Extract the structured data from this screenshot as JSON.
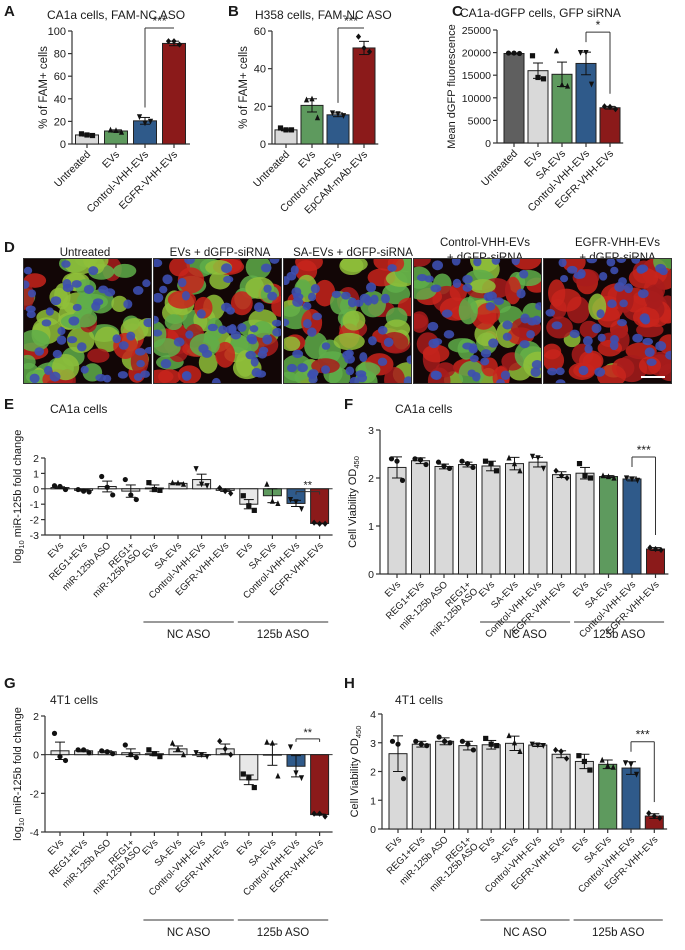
{
  "figure_labels": {
    "A": "A",
    "B": "B",
    "C": "C",
    "D": "D",
    "E": "E",
    "F": "F",
    "G": "G",
    "H": "H"
  },
  "colors": {
    "untreated_gray": "#d9d9d9",
    "dark_gray": "#5f5f5f",
    "green": "#5e9a5e",
    "blue": "#2f5a8a",
    "red": "#8b1a1a",
    "axis": "#333333"
  },
  "microscopy": {
    "panels": [
      {
        "title_line1": "Untreated",
        "title_line2": ""
      },
      {
        "title_line1": "EVs + dGFP-siRNA",
        "title_line2": ""
      },
      {
        "title_line1": "SA-EVs + dGFP-siRNA",
        "title_line2": ""
      },
      {
        "title_line1": "Control-VHH-EVs",
        "title_line2": "+ dGFP-siRNA"
      },
      {
        "title_line1": "EGFR-VHH-EVs",
        "title_line2": "+ dGFP-siRNA"
      }
    ]
  },
  "chart_data": [
    {
      "id": "A",
      "type": "bar",
      "title": "CA1a cells, FAM-NC ASO",
      "xlabel": "",
      "ylabel": "% of FAM+ cells",
      "ylim": [
        0,
        100
      ],
      "yticks": [
        0,
        20,
        40,
        60,
        80,
        100
      ],
      "categories": [
        "Untreated",
        "EVs",
        "Control-VHH-EVs",
        "EGFR-VHH-EVs"
      ],
      "values": [
        8,
        11.5,
        20.5,
        89
      ],
      "errors": [
        1,
        1,
        3,
        2
      ],
      "points": [
        [
          9,
          8,
          7.5
        ],
        [
          12.5,
          12,
          10.5
        ],
        [
          24,
          18.5,
          20
        ],
        [
          91,
          91,
          88
        ]
      ],
      "markers": [
        "square",
        "triangle",
        "triangle-down",
        "diamond"
      ],
      "bar_colors": [
        "#d9d9d9",
        "#5e9a5e",
        "#2f5a8a",
        "#8b1a1a"
      ],
      "significance": [
        {
          "from": 2,
          "to": 3,
          "label": "***"
        }
      ],
      "grid": false
    },
    {
      "id": "B",
      "type": "bar",
      "title": "H358 cells, FAM-NC ASO",
      "xlabel": "",
      "ylabel": "% of FAM+ cells",
      "ylim": [
        0,
        60
      ],
      "yticks": [
        0,
        20,
        40,
        60
      ],
      "categories": [
        "Untreated",
        "EVs",
        "Control-mAb-EVs",
        "EpCAM-mAb-EVs"
      ],
      "values": [
        7.5,
        20.5,
        15.5,
        51
      ],
      "errors": [
        0.5,
        3.5,
        1,
        3.5
      ],
      "points": [
        [
          8.5,
          7.5,
          7.5
        ],
        [
          23.5,
          24,
          14
        ],
        [
          16.5,
          16,
          15
        ],
        [
          57,
          51,
          49
        ]
      ],
      "markers": [
        "square",
        "triangle",
        "triangle-down",
        "diamond"
      ],
      "bar_colors": [
        "#d9d9d9",
        "#5e9a5e",
        "#2f5a8a",
        "#8b1a1a"
      ],
      "significance": [
        {
          "from": 2,
          "to": 3,
          "label": "***"
        }
      ],
      "grid": false
    },
    {
      "id": "C",
      "type": "bar",
      "title": "CA1a-dGFP cells, GFP siRNA",
      "xlabel": "",
      "ylabel": "Mean dGFP fluorescence",
      "ylim": [
        0,
        25000
      ],
      "yticks": [
        0,
        5000,
        10000,
        15000,
        20000,
        25000
      ],
      "categories": [
        "Untreated",
        "EVs",
        "SA-EVs",
        "Control-VHH-EVs",
        "EGFR-VHH-EVs"
      ],
      "values": [
        19800,
        16000,
        15200,
        17600,
        7800
      ],
      "errors": [
        100,
        1700,
        2700,
        2500,
        300
      ],
      "points": [
        [
          19900,
          19900,
          19800
        ],
        [
          19300,
          14500,
          14200
        ],
        [
          20400,
          12900,
          12600
        ],
        [
          20000,
          20000,
          13000
        ],
        [
          8100,
          8000,
          7500
        ]
      ],
      "markers": [
        "circle",
        "square",
        "triangle",
        "triangle-down",
        "diamond"
      ],
      "bar_colors": [
        "#5f5f5f",
        "#d9d9d9",
        "#5e9a5e",
        "#2f5a8a",
        "#8b1a1a"
      ],
      "significance": [
        {
          "from": 3,
          "to": 4,
          "label": "*"
        }
      ],
      "grid": false
    },
    {
      "id": "E",
      "type": "bar",
      "title": "CA1a cells",
      "xlabel": "",
      "ylabel": "log10 miR-125b fold change",
      "ylim": [
        -3,
        2
      ],
      "yticks": [
        -3,
        -2,
        -1,
        0,
        1,
        2
      ],
      "categories": [
        "EVs",
        "REG1+EVs",
        "miR-125b ASO",
        "REG1+ miR-125b ASO",
        "EVs",
        "SA-EVs",
        "Control-VHH-EVs",
        "EGFR-VHH-EVs",
        "EVs",
        "SA-EVs",
        "Control-VHH-EVs",
        "EGFR-VHH-EVs"
      ],
      "groups": [
        {
          "label": "NC ASO",
          "start": 4,
          "end": 7
        },
        {
          "label": "125b ASO",
          "start": 8,
          "end": 11
        }
      ],
      "values": [
        0.08,
        -0.1,
        0.15,
        -0.15,
        0.05,
        0.35,
        0.6,
        -0.1,
        -1.0,
        -0.45,
        -0.95,
        -2.25
      ],
      "errors": [
        0.05,
        0.05,
        0.35,
        0.4,
        0.2,
        0.04,
        0.35,
        0.07,
        0.3,
        0.45,
        0.2,
        0.02
      ],
      "points": [
        [
          0.2,
          0.15,
          -0.05
        ],
        [
          -0.05,
          -0.15,
          -0.2
        ],
        [
          0.8,
          0.1,
          -0.4
        ],
        [
          0.6,
          -0.4,
          -0.7
        ],
        [
          0.4,
          -0.05,
          -0.1
        ],
        [
          0.4,
          0.38,
          0.3
        ],
        [
          1.3,
          0.3,
          0.2
        ],
        [
          0.05,
          -0.15,
          -0.3
        ],
        [
          -0.45,
          -1.1,
          -1.4
        ],
        [
          0.3,
          -0.8,
          -0.95
        ],
        [
          -0.7,
          -0.85,
          -1.3
        ],
        [
          -2.2,
          -2.27,
          -2.27
        ]
      ],
      "markers": [
        "circle",
        "circle",
        "circle",
        "circle",
        "square",
        "triangle",
        "triangle-down",
        "diamond",
        "square",
        "triangle",
        "triangle-down",
        "diamond"
      ],
      "bar_colors": [
        "#e8e8e8",
        "#e8e8e8",
        "#e8e8e8",
        "#e8e8e8",
        "#e8e8e8",
        "#e8e8e8",
        "#e8e8e8",
        "#e8e8e8",
        "#e8e8e8",
        "#5e9a5e",
        "#2f5a8a",
        "#8b1a1a"
      ],
      "significance": [
        {
          "from": 10,
          "to": 11,
          "label": "**"
        }
      ],
      "grid": false
    },
    {
      "id": "F",
      "type": "bar",
      "title": "CA1a cells",
      "xlabel": "",
      "ylabel": "Cell Viability OD450",
      "ylim": [
        0,
        3
      ],
      "yticks": [
        0,
        1,
        2,
        3
      ],
      "categories": [
        "EVs",
        "REG1+EVs",
        "miR-125b ASO",
        "REG1+ miR-125b ASO",
        "EVs",
        "SA-EVs",
        "Control-VHH-EVs",
        "EGFR-VHH-EVs",
        "EVs",
        "SA-EVs",
        "Control-VHH-EVs",
        "EGFR-VHH-EVs"
      ],
      "groups": [
        {
          "label": "NC ASO",
          "start": 4,
          "end": 7
        },
        {
          "label": "125b ASO",
          "start": 8,
          "end": 11
        }
      ],
      "values": [
        2.22,
        2.36,
        2.24,
        2.28,
        2.25,
        2.3,
        2.33,
        2.07,
        2.1,
        2.03,
        1.98,
        0.52
      ],
      "errors": [
        0.22,
        0.06,
        0.05,
        0.05,
        0.1,
        0.13,
        0.1,
        0.06,
        0.12,
        0.02,
        0.04,
        0.03
      ],
      "points": [
        [
          2.4,
          2.35,
          1.95
        ],
        [
          2.4,
          2.38,
          2.28
        ],
        [
          2.33,
          2.25,
          2.2
        ],
        [
          2.35,
          2.3,
          2.22
        ],
        [
          2.35,
          2.3,
          2.15
        ],
        [
          2.42,
          2.3,
          2.15
        ],
        [
          2.45,
          2.42,
          2.2
        ],
        [
          2.15,
          2.05,
          2.0
        ],
        [
          2.3,
          2.05,
          2.0
        ],
        [
          2.05,
          2.03,
          2.0
        ],
        [
          2.0,
          1.98,
          1.95
        ],
        [
          0.55,
          0.52,
          0.5
        ]
      ],
      "markers": [
        "circle",
        "circle",
        "circle",
        "circle",
        "square",
        "triangle",
        "triangle-down",
        "diamond",
        "square",
        "triangle",
        "triangle-down",
        "diamond"
      ],
      "bar_colors": [
        "#d9d9d9",
        "#d9d9d9",
        "#d9d9d9",
        "#d9d9d9",
        "#d9d9d9",
        "#d9d9d9",
        "#d9d9d9",
        "#d9d9d9",
        "#d9d9d9",
        "#5e9a5e",
        "#2f5a8a",
        "#8b1a1a"
      ],
      "significance": [
        {
          "from": 10,
          "to": 11,
          "label": "***"
        }
      ],
      "grid": false
    },
    {
      "id": "G",
      "type": "bar",
      "title": "4T1 cells",
      "xlabel": "",
      "ylabel": "log10 miR-125b fold change",
      "ylim": [
        -4,
        2
      ],
      "yticks": [
        -4,
        -2,
        0,
        2
      ],
      "categories": [
        "EVs",
        "REG1+EVs",
        "miR-125b ASO",
        "REG1+ miR-125b ASO",
        "EVs",
        "SA-EVs",
        "Control-VHH-EVs",
        "EGFR-VHH-EVs",
        "EVs",
        "SA-EVs",
        "Control-VHH-EVs",
        "EGFR-VHH-EVs"
      ],
      "groups": [
        {
          "label": "NC ASO",
          "start": 4,
          "end": 7
        },
        {
          "label": "125b ASO",
          "start": 8,
          "end": 11
        }
      ],
      "values": [
        0.2,
        0.2,
        0.15,
        0.1,
        0.05,
        0.3,
        0.0,
        0.3,
        -1.3,
        0.0,
        -0.6,
        -3.1
      ],
      "errors": [
        0.45,
        0.05,
        0.05,
        0.2,
        0.1,
        0.15,
        0.1,
        0.25,
        0.25,
        0.55,
        0.55,
        0.03
      ],
      "points": [
        [
          1.1,
          -0.1,
          -0.3
        ],
        [
          0.25,
          0.25,
          0.1
        ],
        [
          0.2,
          0.15,
          0.05
        ],
        [
          0.5,
          0.0,
          -0.15
        ],
        [
          0.25,
          0.05,
          -0.1
        ],
        [
          0.6,
          0.3,
          0.0
        ],
        [
          0.1,
          0.0,
          -0.1
        ],
        [
          0.7,
          0.3,
          0.0
        ],
        [
          -1.0,
          -1.2,
          -1.7
        ],
        [
          0.65,
          0.6,
          -1.1
        ],
        [
          0.4,
          -0.95,
          -1.2
        ],
        [
          -3.05,
          -3.05,
          -3.2
        ]
      ],
      "markers": [
        "circle",
        "circle",
        "circle",
        "circle",
        "square",
        "triangle",
        "triangle-down",
        "diamond",
        "square",
        "triangle",
        "triangle-down",
        "diamond"
      ],
      "bar_colors": [
        "#e8e8e8",
        "#e8e8e8",
        "#e8e8e8",
        "#e8e8e8",
        "#e8e8e8",
        "#e8e8e8",
        "#e8e8e8",
        "#e8e8e8",
        "#e8e8e8",
        "#5e9a5e",
        "#2f5a8a",
        "#8b1a1a"
      ],
      "significance": [
        {
          "from": 10,
          "to": 11,
          "label": "**"
        }
      ],
      "grid": false
    },
    {
      "id": "H",
      "type": "bar",
      "title": "4T1 cells",
      "xlabel": "",
      "ylabel": "Cell Viability OD450",
      "ylim": [
        0,
        4
      ],
      "yticks": [
        0,
        1,
        2,
        3,
        4
      ],
      "categories": [
        "EVs",
        "REG1+EVs",
        "miR-125b ASO",
        "REG1+ miR-125b ASO",
        "EVs",
        "SA-EVs",
        "Control-VHH-EVs",
        "EGFR-VHH-EVs",
        "EVs",
        "SA-EVs",
        "Control-VHH-EVs",
        "EGFR-VHH-EVs"
      ],
      "groups": [
        {
          "label": "NC ASO",
          "start": 4,
          "end": 7
        },
        {
          "label": "125b ASO",
          "start": 8,
          "end": 11
        }
      ],
      "values": [
        2.62,
        2.95,
        3.05,
        2.9,
        2.93,
        2.98,
        2.92,
        2.6,
        2.35,
        2.25,
        2.12,
        0.45
      ],
      "errors": [
        0.62,
        0.1,
        0.12,
        0.15,
        0.15,
        0.25,
        0.05,
        0.12,
        0.25,
        0.15,
        0.22,
        0.08
      ],
      "points": [
        [
          3.05,
          2.95,
          1.75
        ],
        [
          3.05,
          2.95,
          2.9
        ],
        [
          3.2,
          3.05,
          3.0
        ],
        [
          3.05,
          2.95,
          2.75
        ],
        [
          3.15,
          2.95,
          2.9
        ],
        [
          3.25,
          3.0,
          2.7
        ],
        [
          2.95,
          2.92,
          2.9
        ],
        [
          2.75,
          2.7,
          2.45
        ],
        [
          2.55,
          2.35,
          2.05
        ],
        [
          2.4,
          2.2,
          2.15
        ],
        [
          2.3,
          2.25,
          1.9
        ],
        [
          0.55,
          0.45,
          0.38
        ]
      ],
      "markers": [
        "circle",
        "circle",
        "circle",
        "circle",
        "square",
        "triangle",
        "triangle-down",
        "diamond",
        "square",
        "triangle",
        "triangle-down",
        "diamond"
      ],
      "bar_colors": [
        "#d9d9d9",
        "#d9d9d9",
        "#d9d9d9",
        "#d9d9d9",
        "#d9d9d9",
        "#d9d9d9",
        "#d9d9d9",
        "#d9d9d9",
        "#d9d9d9",
        "#5e9a5e",
        "#2f5a8a",
        "#8b1a1a"
      ],
      "significance": [
        {
          "from": 10,
          "to": 11,
          "label": "***"
        }
      ],
      "grid": false
    }
  ]
}
